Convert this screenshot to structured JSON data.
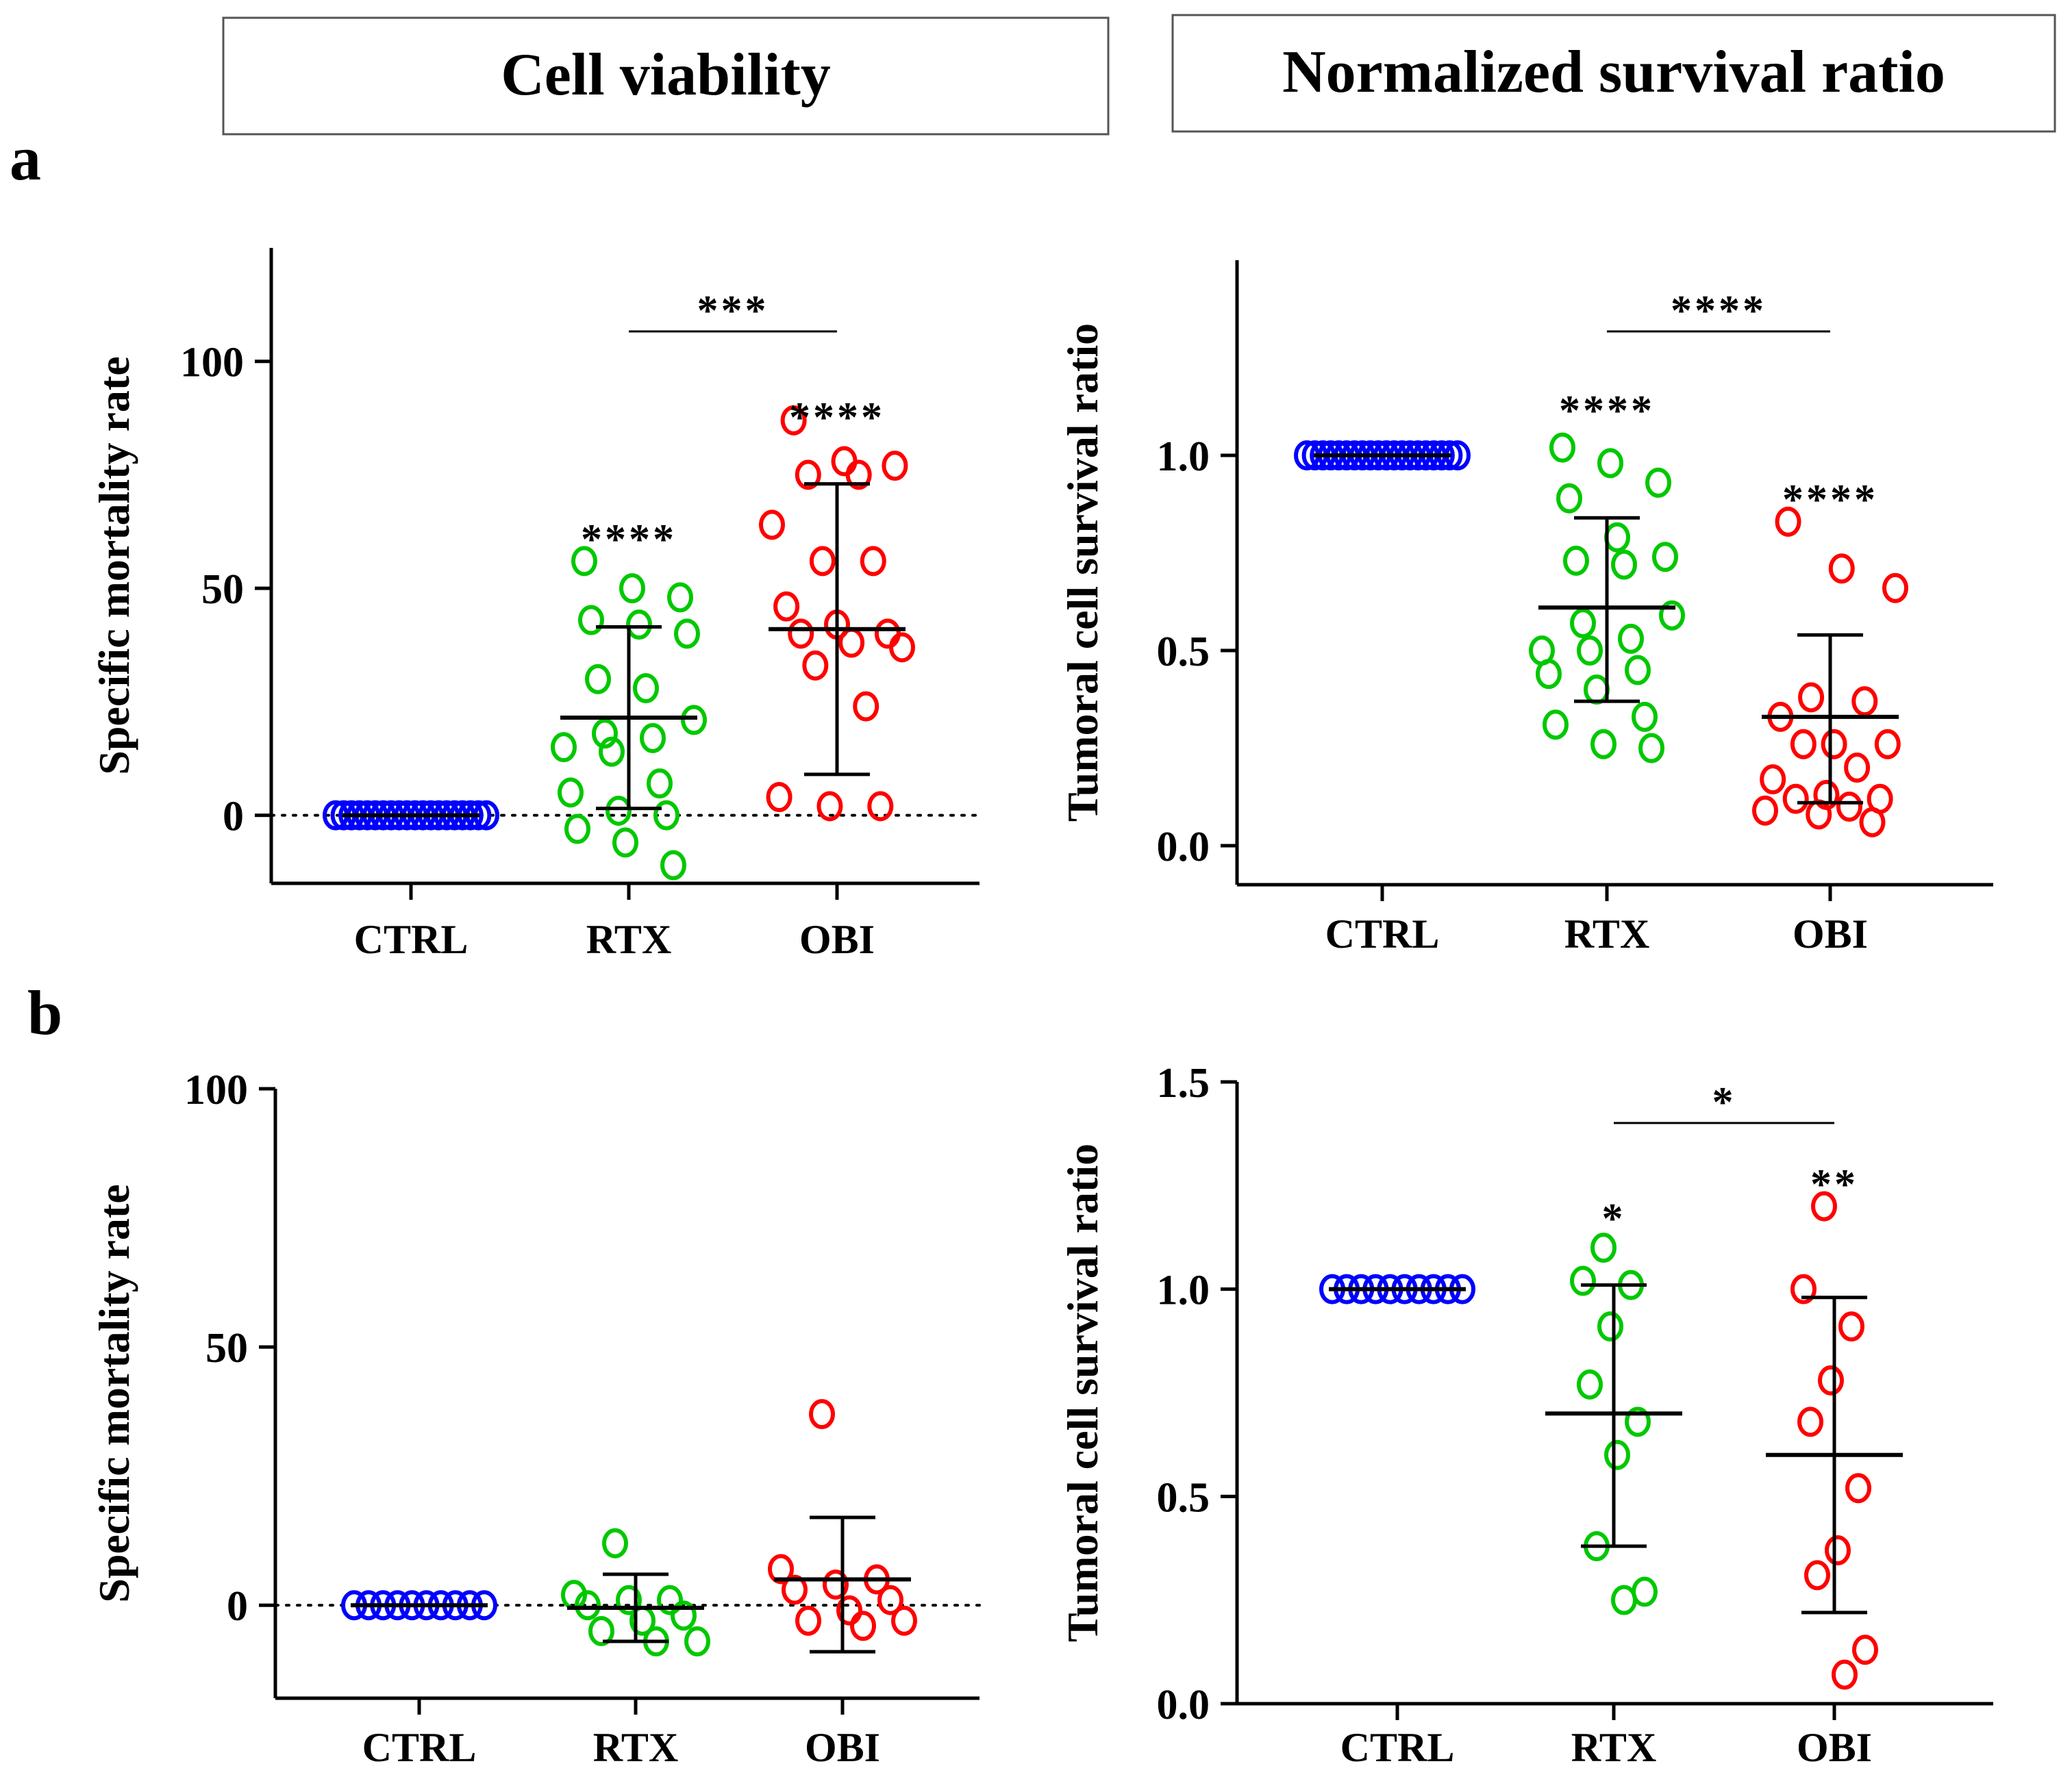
{
  "headers": [
    "Cell viability",
    "Normalized survival ratio"
  ],
  "panel_labels": [
    "a",
    "b"
  ],
  "chart_data": [
    {
      "id": "a-left",
      "type": "scatter",
      "ylabel": "Specific mortality rate",
      "ylim": [
        -15,
        125
      ],
      "yticks": [
        0,
        50,
        100
      ],
      "ytick_labels": [
        "0",
        "50",
        "100"
      ],
      "categories": [
        "CTRL",
        "RTX",
        "OBI"
      ],
      "reference_line_y": 0,
      "series": [
        {
          "name": "CTRL",
          "color": "#0000ff",
          "mean": 0,
          "err_low": 0,
          "err_high": 0,
          "values": [
            0,
            0,
            0,
            0,
            0,
            0,
            0,
            0,
            0,
            0,
            0,
            0,
            0,
            0,
            0,
            0,
            0,
            0,
            0,
            0
          ]
        },
        {
          "name": "RTX",
          "color": "#00c800",
          "mean": 21.5,
          "err_low": 1.5,
          "err_high": 41.5,
          "values": [
            56,
            50,
            48,
            43,
            42,
            40,
            30,
            28,
            21,
            18,
            17,
            15,
            14,
            7,
            5,
            1,
            0,
            -3,
            -6,
            -11
          ]
        },
        {
          "name": "OBI",
          "color": "#ff0000",
          "mean": 41,
          "err_low": 9,
          "err_high": 73,
          "values": [
            87,
            78,
            77,
            75,
            75,
            64,
            56,
            56,
            46,
            42,
            40,
            40,
            38,
            37,
            33,
            24,
            4,
            2,
            2
          ]
        }
      ],
      "significance": [
        {
          "group": "RTX",
          "label": "****"
        },
        {
          "group": "OBI",
          "label": "****"
        },
        {
          "groups": [
            "RTX",
            "OBI"
          ],
          "label": "***"
        }
      ]
    },
    {
      "id": "a-right",
      "type": "scatter",
      "ylabel": "Tumoral cell survival ratio",
      "ylim": [
        -0.1,
        1.5
      ],
      "yticks": [
        0,
        0.5,
        1
      ],
      "ytick_labels": [
        "0.0",
        "0.5",
        "1.0"
      ],
      "categories": [
        "CTRL",
        "RTX",
        "OBI"
      ],
      "series": [
        {
          "name": "CTRL",
          "color": "#0000ff",
          "mean": 1.0,
          "err_low": 1.0,
          "err_high": 1.0,
          "values": [
            1,
            1,
            1,
            1,
            1,
            1,
            1,
            1,
            1,
            1,
            1,
            1,
            1,
            1,
            1,
            1,
            1,
            1,
            1,
            1
          ]
        },
        {
          "name": "RTX",
          "color": "#00c800",
          "mean": 0.61,
          "err_low": 0.37,
          "err_high": 0.84,
          "values": [
            1.02,
            0.98,
            0.93,
            0.89,
            0.79,
            0.74,
            0.73,
            0.72,
            0.59,
            0.57,
            0.53,
            0.5,
            0.5,
            0.45,
            0.44,
            0.4,
            0.33,
            0.31,
            0.26,
            0.25
          ]
        },
        {
          "name": "OBI",
          "color": "#ff0000",
          "mean": 0.33,
          "err_low": 0.11,
          "err_high": 0.54,
          "values": [
            0.83,
            0.71,
            0.66,
            0.38,
            0.37,
            0.33,
            0.26,
            0.26,
            0.26,
            0.2,
            0.17,
            0.13,
            0.12,
            0.12,
            0.1,
            0.09,
            0.08,
            0.06
          ]
        }
      ],
      "significance": [
        {
          "group": "RTX",
          "label": "****"
        },
        {
          "group": "OBI",
          "label": "****"
        },
        {
          "groups": [
            "RTX",
            "OBI"
          ],
          "label": "****"
        }
      ]
    },
    {
      "id": "b-left",
      "type": "scatter",
      "ylabel": "Specific mortality rate",
      "ylim": [
        -18,
        100
      ],
      "yticks": [
        0,
        50,
        100
      ],
      "ytick_labels": [
        "0",
        "50",
        "100"
      ],
      "categories": [
        "CTRL",
        "RTX",
        "OBI"
      ],
      "reference_line_y": 0,
      "series": [
        {
          "name": "CTRL",
          "color": "#0000ff",
          "mean": 0,
          "err_low": 0,
          "err_high": 0,
          "values": [
            0,
            0,
            0,
            0,
            0,
            0,
            0,
            0,
            0,
            0
          ]
        },
        {
          "name": "RTX",
          "color": "#00c800",
          "mean": -0.5,
          "err_low": -7,
          "err_high": 6,
          "values": [
            12,
            2,
            1,
            1,
            0,
            -2,
            -3,
            -5,
            -7,
            -7
          ]
        },
        {
          "name": "OBI",
          "color": "#ff0000",
          "mean": 5,
          "err_low": -9,
          "err_high": 17,
          "values": [
            37,
            7,
            5,
            4,
            3,
            1,
            -1,
            -3,
            -3,
            -4
          ]
        }
      ],
      "significance": []
    },
    {
      "id": "b-right",
      "type": "scatter",
      "ylabel": "Tumoral cell survival ratio",
      "ylim": [
        0,
        1.5
      ],
      "yticks": [
        0,
        0.5,
        1,
        1.5
      ],
      "ytick_labels": [
        "0.0",
        "0.5",
        "1.0",
        "1.5"
      ],
      "categories": [
        "CTRL",
        "RTX",
        "OBI"
      ],
      "series": [
        {
          "name": "CTRL",
          "color": "#0000ff",
          "mean": 1.0,
          "err_low": 1.0,
          "err_high": 1.0,
          "values": [
            1,
            1,
            1,
            1,
            1,
            1,
            1,
            1,
            1,
            1
          ]
        },
        {
          "name": "RTX",
          "color": "#00c800",
          "mean": 0.7,
          "err_low": 0.38,
          "err_high": 1.01,
          "values": [
            1.1,
            1.02,
            1.01,
            0.91,
            0.77,
            0.68,
            0.6,
            0.38,
            0.27,
            0.25
          ]
        },
        {
          "name": "OBI",
          "color": "#ff0000",
          "mean": 0.6,
          "err_low": 0.22,
          "err_high": 0.98,
          "values": [
            1.2,
            1.0,
            0.91,
            0.78,
            0.68,
            0.52,
            0.37,
            0.31,
            0.13,
            0.07
          ]
        }
      ],
      "significance": [
        {
          "group": "RTX",
          "label": "*"
        },
        {
          "group": "OBI",
          "label": "**"
        },
        {
          "groups": [
            "RTX",
            "OBI"
          ],
          "label": "*"
        }
      ]
    }
  ]
}
